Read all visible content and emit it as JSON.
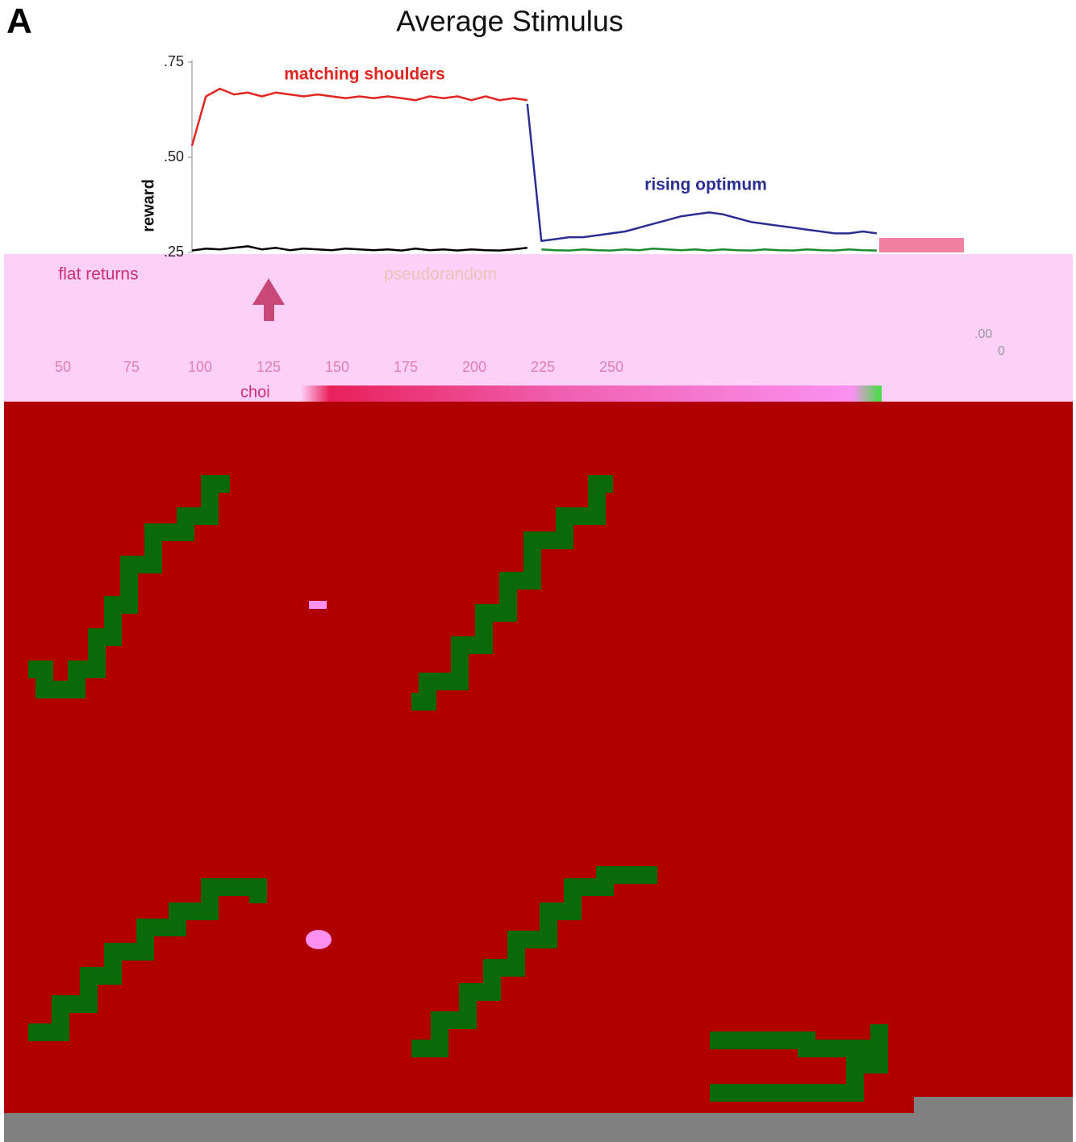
{
  "chart_data": {
    "type": "line",
    "panel_label": "A",
    "title": "Average Stimulus",
    "y_label": "reward",
    "ylim": [
      0.25,
      0.75
    ],
    "yticks": [
      {
        "value": 0.25,
        "label": ".25"
      },
      {
        "value": 0.5,
        "label": ".50"
      },
      {
        "value": 0.75,
        "label": ".75"
      }
    ],
    "xticks": [
      50,
      75,
      100,
      125,
      150,
      175,
      200,
      225,
      250
    ],
    "series": [
      {
        "name": "matching shoulders",
        "color": "#e3241f",
        "values": [
          0.53,
          0.66,
          0.68,
          0.665,
          0.67,
          0.66,
          0.67,
          0.665,
          0.66,
          0.665,
          0.66,
          0.655,
          0.66,
          0.655,
          0.66,
          0.655,
          0.65,
          0.66,
          0.655,
          0.66,
          0.65,
          0.66,
          0.65,
          0.655,
          0.65,
          null,
          null,
          null,
          null,
          null,
          null,
          null,
          null,
          null,
          null,
          null,
          null,
          null,
          null,
          null,
          null,
          null,
          null,
          null,
          null,
          null,
          null,
          null,
          null,
          null
        ]
      },
      {
        "name": "rising optimum",
        "color": "#2b2f94",
        "values": [
          null,
          null,
          null,
          null,
          null,
          null,
          null,
          null,
          null,
          null,
          null,
          null,
          null,
          null,
          null,
          null,
          null,
          null,
          null,
          null,
          null,
          null,
          null,
          null,
          0.64,
          0.28,
          0.285,
          0.29,
          0.29,
          0.295,
          0.3,
          0.305,
          0.315,
          0.325,
          0.335,
          0.345,
          0.35,
          0.355,
          0.35,
          0.34,
          0.33,
          0.325,
          0.32,
          0.315,
          0.31,
          0.305,
          0.3,
          0.3,
          0.305,
          0.3
        ]
      },
      {
        "name": "flat returns",
        "color": "#000000",
        "values": [
          0.255,
          0.26,
          0.258,
          0.262,
          0.266,
          0.258,
          0.262,
          0.256,
          0.26,
          0.258,
          0.256,
          0.26,
          0.258,
          0.256,
          0.258,
          0.255,
          0.26,
          0.256,
          0.258,
          0.255,
          0.258,
          0.256,
          0.255,
          0.258,
          0.262,
          null,
          null,
          null,
          null,
          null,
          null,
          null,
          null,
          null,
          null,
          null,
          null,
          null,
          null,
          null,
          null,
          null,
          null,
          null,
          null,
          null,
          null,
          null,
          null,
          null
        ]
      },
      {
        "name": "pseudorandom",
        "color": "#1e8a2e",
        "values": [
          null,
          null,
          null,
          null,
          null,
          null,
          null,
          null,
          null,
          null,
          null,
          null,
          null,
          null,
          null,
          null,
          null,
          null,
          null,
          null,
          null,
          null,
          null,
          null,
          null,
          0.258,
          0.256,
          0.255,
          0.258,
          0.256,
          0.255,
          0.258,
          0.256,
          0.26,
          0.258,
          0.256,
          0.258,
          0.255,
          0.258,
          0.256,
          0.255,
          0.258,
          0.256,
          0.255,
          0.258,
          0.256,
          0.255,
          0.258,
          0.256,
          0.255
        ]
      }
    ],
    "annotations": [
      "choi",
      ".00",
      "0"
    ]
  }
}
